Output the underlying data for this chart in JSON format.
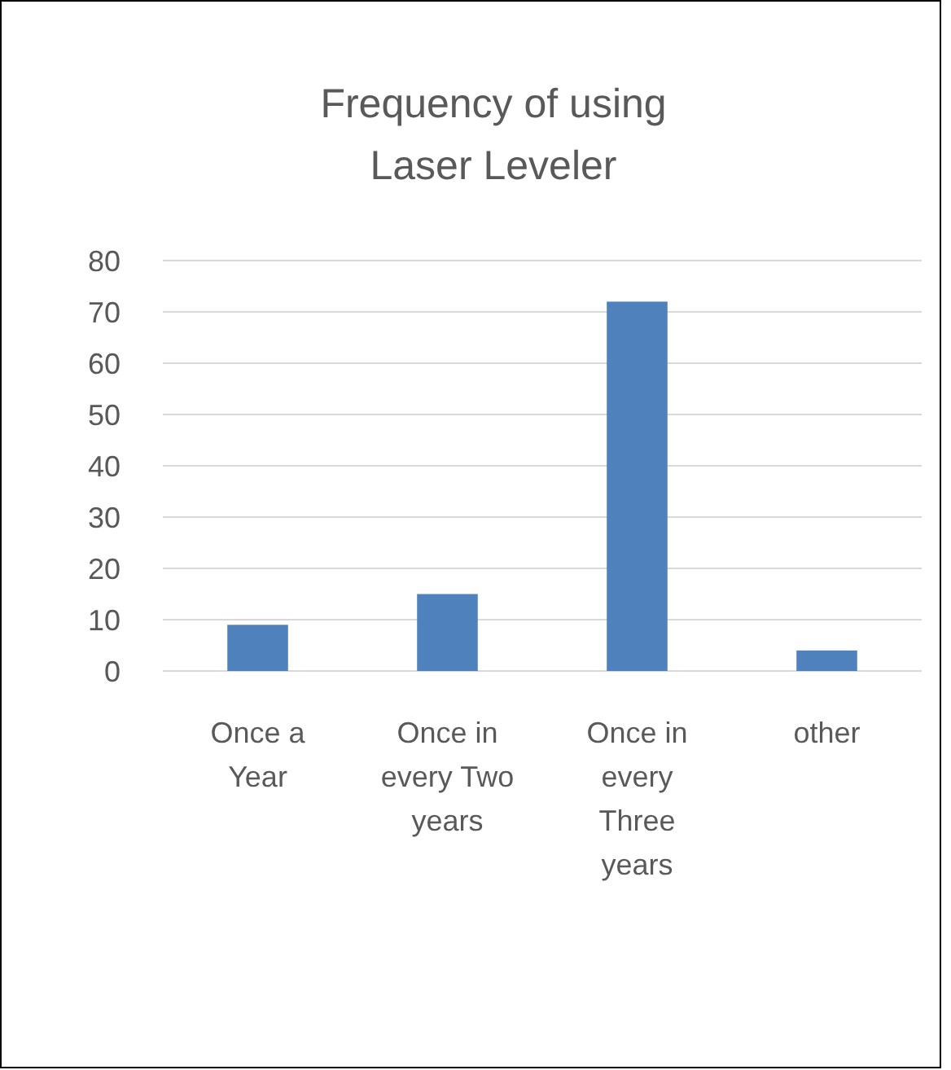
{
  "chart_data": {
    "type": "bar",
    "title": "Frequency of using Laser Leveler",
    "categories": [
      "Once a Year",
      "Once in every Two years",
      "Once in every Three years",
      "other"
    ],
    "values": [
      9,
      15,
      72,
      4
    ],
    "color": "#4f81bd",
    "ylim": [
      0,
      80
    ],
    "yticks": [
      0,
      10,
      20,
      30,
      40,
      50,
      60,
      70,
      80
    ],
    "grid": "y"
  }
}
